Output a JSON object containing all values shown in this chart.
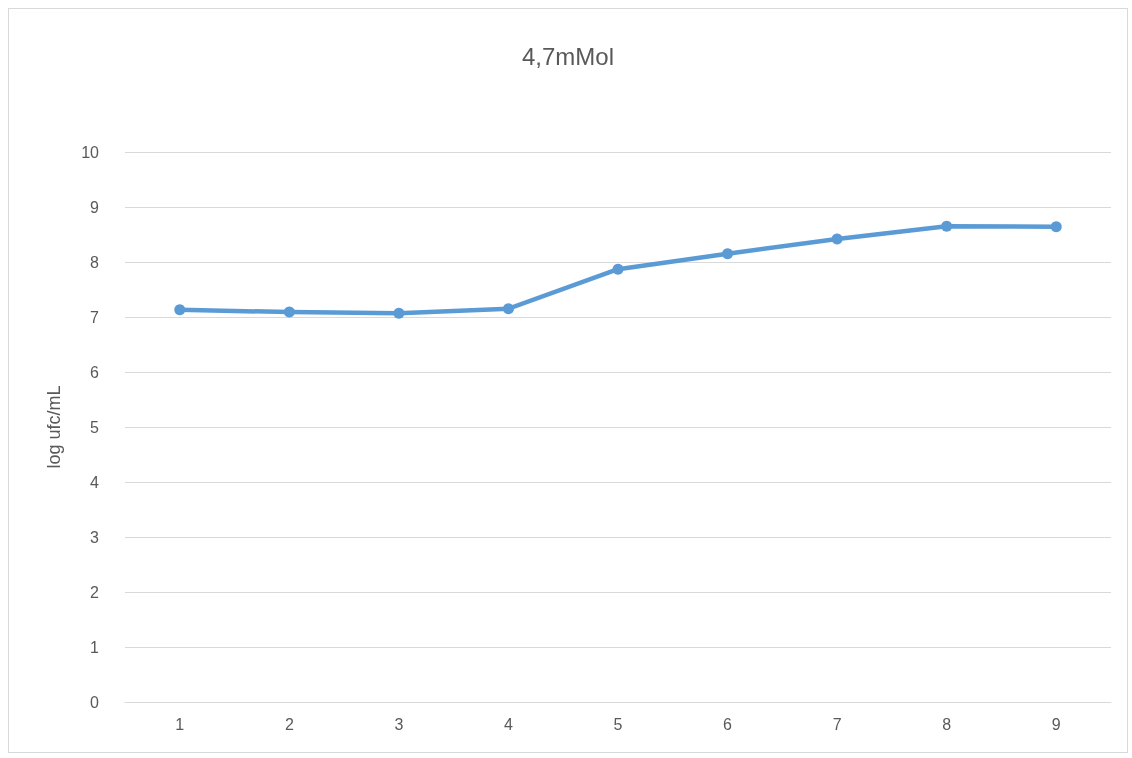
{
  "chart_data": {
    "type": "line",
    "title": "4,7mMol",
    "ylabel": "log ufc/mL",
    "categories": [
      "1",
      "2",
      "3",
      "4",
      "5",
      "6",
      "7",
      "8",
      "9"
    ],
    "series": [
      {
        "color": "#5b9bd5",
        "values": [
          7.13,
          7.09,
          7.07,
          7.15,
          7.87,
          8.15,
          8.42,
          8.65,
          8.64
        ]
      }
    ],
    "ylim": [
      0,
      10
    ],
    "yticks": [
      0,
      1,
      2,
      3,
      4,
      5,
      6,
      7,
      8,
      9,
      10
    ],
    "grid": "y",
    "marker": "circle",
    "line_style": "solid"
  }
}
